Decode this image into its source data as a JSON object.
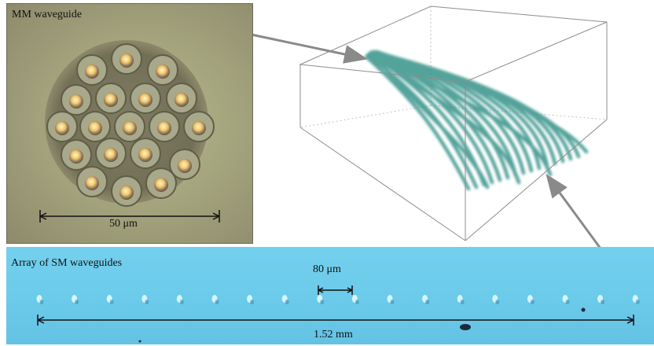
{
  "mm_panel": {
    "title": "MM waveguide",
    "scale_label": "50 μm"
  },
  "sm_panel": {
    "title": "Array of SM waveguides",
    "pitch_label": "80 μm",
    "span_label": "1.52 mm"
  },
  "colors": {
    "waveguide_core": "#2f8f86",
    "box_edge": "#8c8c8c",
    "arrow": "#8a8a8a",
    "sm_background": "#6ccbea"
  }
}
